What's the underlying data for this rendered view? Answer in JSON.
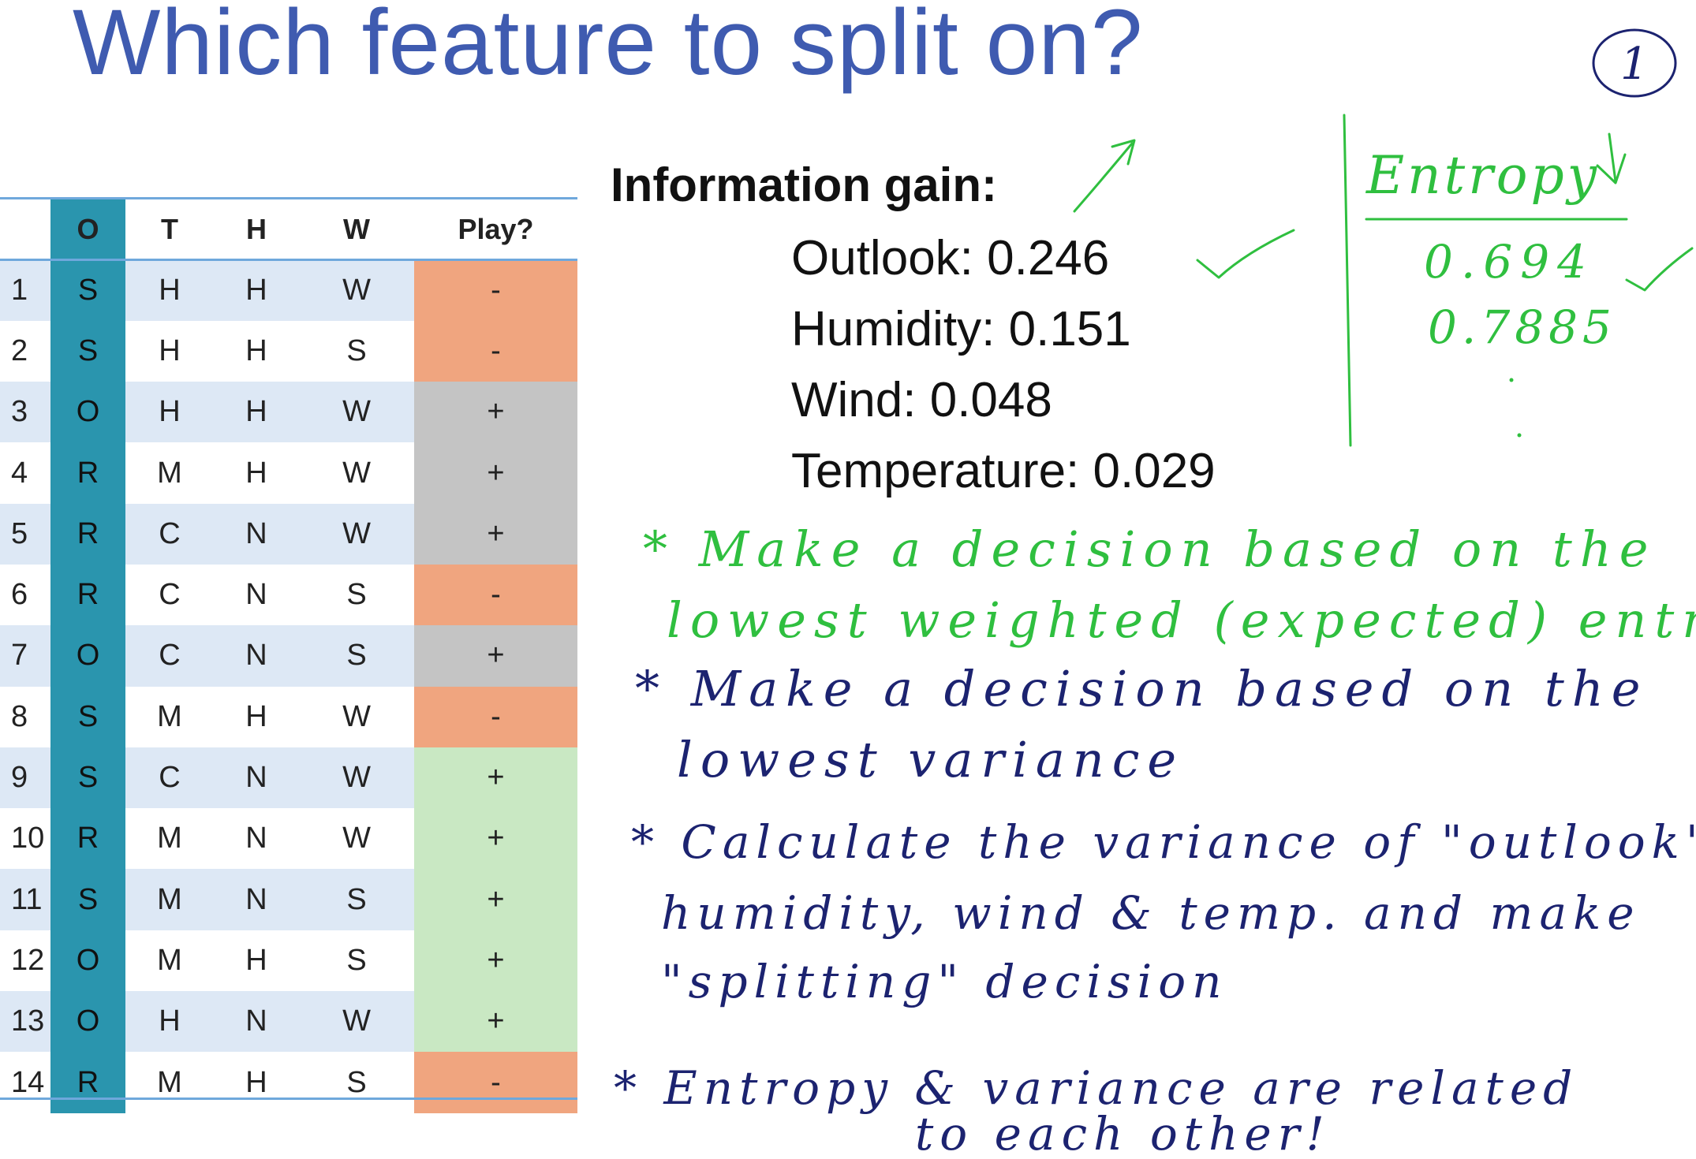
{
  "title": "Which feature to split on?",
  "table": {
    "headers": [
      "",
      "O",
      "T",
      "H",
      "W",
      "Play?"
    ],
    "rows": [
      {
        "n": "1",
        "o": "S",
        "t": "H",
        "h": "H",
        "w": "W",
        "play": "-",
        "color": "neg"
      },
      {
        "n": "2",
        "o": "S",
        "t": "H",
        "h": "H",
        "w": "S",
        "play": "-",
        "color": "neg"
      },
      {
        "n": "3",
        "o": "O",
        "t": "H",
        "h": "H",
        "w": "W",
        "play": "+",
        "color": "pos-gray"
      },
      {
        "n": "4",
        "o": "R",
        "t": "M",
        "h": "H",
        "w": "W",
        "play": "+",
        "color": "pos-gray"
      },
      {
        "n": "5",
        "o": "R",
        "t": "C",
        "h": "N",
        "w": "W",
        "play": "+",
        "color": "pos-gray"
      },
      {
        "n": "6",
        "o": "R",
        "t": "C",
        "h": "N",
        "w": "S",
        "play": "-",
        "color": "neg"
      },
      {
        "n": "7",
        "o": "O",
        "t": "C",
        "h": "N",
        "w": "S",
        "play": "+",
        "color": "pos-gray"
      },
      {
        "n": "8",
        "o": "S",
        "t": "M",
        "h": "H",
        "w": "W",
        "play": "-",
        "color": "neg"
      },
      {
        "n": "9",
        "o": "S",
        "t": "C",
        "h": "N",
        "w": "W",
        "play": "+",
        "color": "pos-green"
      },
      {
        "n": "10",
        "o": "R",
        "t": "M",
        "h": "N",
        "w": "W",
        "play": "+",
        "color": "pos-green"
      },
      {
        "n": "11",
        "o": "S",
        "t": "M",
        "h": "N",
        "w": "S",
        "play": "+",
        "color": "pos-green"
      },
      {
        "n": "12",
        "o": "O",
        "t": "M",
        "h": "H",
        "w": "S",
        "play": "+",
        "color": "pos-green"
      },
      {
        "n": "13",
        "o": "O",
        "t": "H",
        "h": "N",
        "w": "W",
        "play": "+",
        "color": "pos-green"
      },
      {
        "n": "14",
        "o": "R",
        "t": "M",
        "h": "H",
        "w": "S",
        "play": "-",
        "color": "neg"
      }
    ]
  },
  "information_gain": {
    "title": "Information gain:",
    "items": [
      "Outlook:  0.246",
      "Humidity: 0.151",
      "Wind: 0.048",
      "Temperature: 0.029"
    ]
  },
  "handwriting": {
    "slide_number": "1",
    "entropy_header": "Entropy",
    "entropy_values": [
      "0.694",
      "0.7885"
    ],
    "notes": [
      {
        "text": "* Make a decision based on the lowest weighted (expected) entropy!",
        "color": "green"
      },
      {
        "text": "* Make a decision based on the lowest variance",
        "color": "navy"
      },
      {
        "text": "* Calculate the variance of \"outlook\", humidity, wind & temp. and make \"splitting\" decision",
        "color": "navy"
      },
      {
        "text": "* Entropy & variance are related to each other!",
        "color": "navy"
      }
    ]
  },
  "colors": {
    "title": "#3f5bb0",
    "outlook_column": "#2a95ae",
    "negative_row": "#f0a57f",
    "positive_gray_row": "#c4c4c4",
    "positive_green_row": "#c9e8c3",
    "band_row": "#dde8f5",
    "ink_green": "#2fbf3f",
    "ink_navy": "#1c2370"
  }
}
